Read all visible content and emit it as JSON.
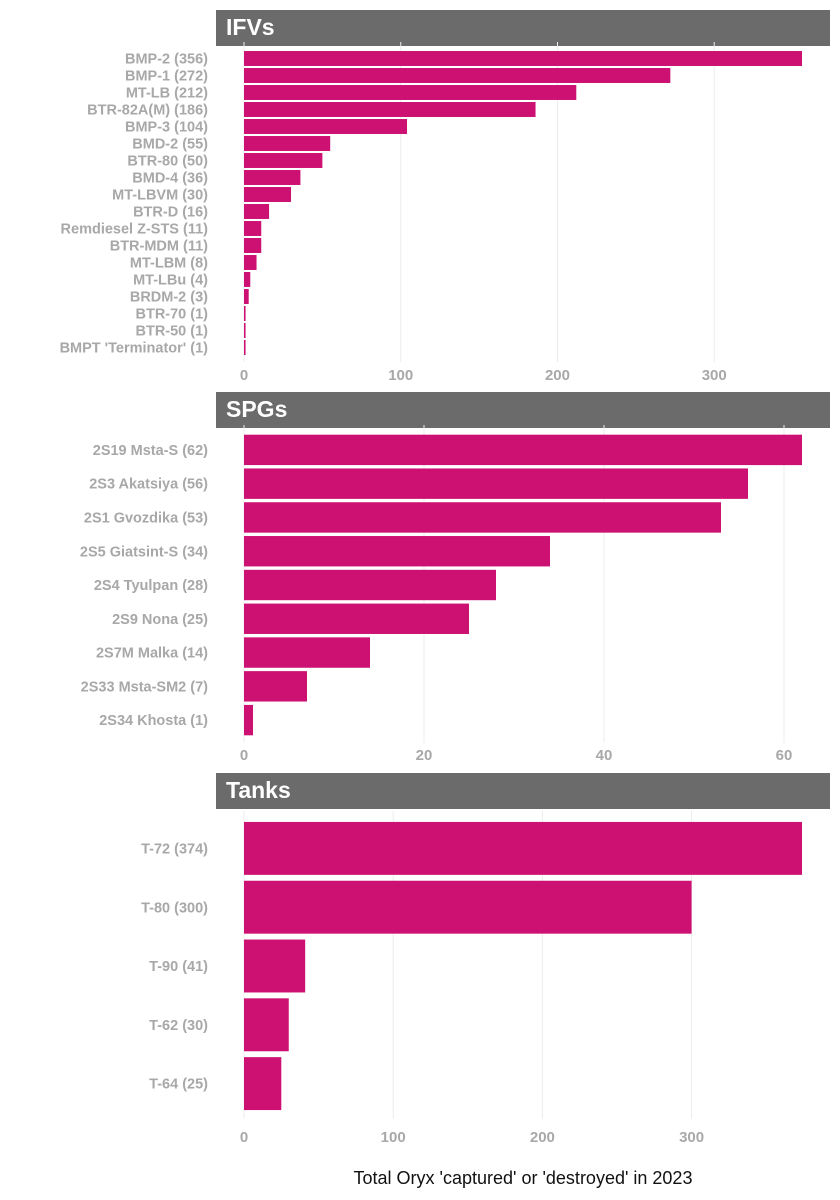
{
  "colors": {
    "bar": "#cc1173",
    "strip": "#6b6b6b",
    "label": "#a8a8a8"
  },
  "chart_data": [
    {
      "type": "bar",
      "orientation": "horizontal",
      "title": "IFVs",
      "categories": [
        "BMP-2 (356)",
        "BMP-1 (272)",
        "MT-LB (212)",
        "BTR-82A(M) (186)",
        "BMP-3 (104)",
        "BMD-2 (55)",
        "BTR-80 (50)",
        "BMD-4 (36)",
        "MT-LBVM (30)",
        "BTR-D (16)",
        "Remdiesel Z-STS (11)",
        "BTR-MDM (11)",
        "MT-LBM (8)",
        "MT-LBu (4)",
        "BRDM-2 (3)",
        "BTR-70 (1)",
        "BTR-50 (1)",
        "BMPT 'Terminator' (1)"
      ],
      "values": [
        356,
        272,
        212,
        186,
        104,
        55,
        50,
        36,
        30,
        16,
        11,
        11,
        8,
        4,
        3,
        1,
        1,
        1
      ],
      "xlim": [
        0,
        356
      ],
      "xticks": [
        0,
        100,
        200,
        300
      ]
    },
    {
      "type": "bar",
      "orientation": "horizontal",
      "title": "SPGs",
      "categories": [
        "2S19 Msta-S (62)",
        "2S3 Akatsiya (56)",
        "2S1 Gvozdika (53)",
        "2S5 Giatsint-S (34)",
        "2S4 Tyulpan (28)",
        "2S9 Nona (25)",
        "2S7M Malka (14)",
        "2S33 Msta-SM2 (7)",
        "2S34 Khosta (1)"
      ],
      "values": [
        62,
        56,
        53,
        34,
        28,
        25,
        14,
        7,
        1
      ],
      "xlim": [
        0,
        62
      ],
      "xticks": [
        0,
        20,
        40,
        60
      ]
    },
    {
      "type": "bar",
      "orientation": "horizontal",
      "title": "Tanks",
      "categories": [
        "T-72 (374)",
        "T-80 (300)",
        "T-90 (41)",
        "T-62 (30)",
        "T-64 (25)"
      ],
      "values": [
        374,
        300,
        41,
        30,
        25
      ],
      "xlim": [
        0,
        374
      ],
      "xticks": [
        0,
        100,
        200,
        300
      ]
    }
  ],
  "xlabel": "Total Oryx 'captured' or 'destroyed' in 2023"
}
